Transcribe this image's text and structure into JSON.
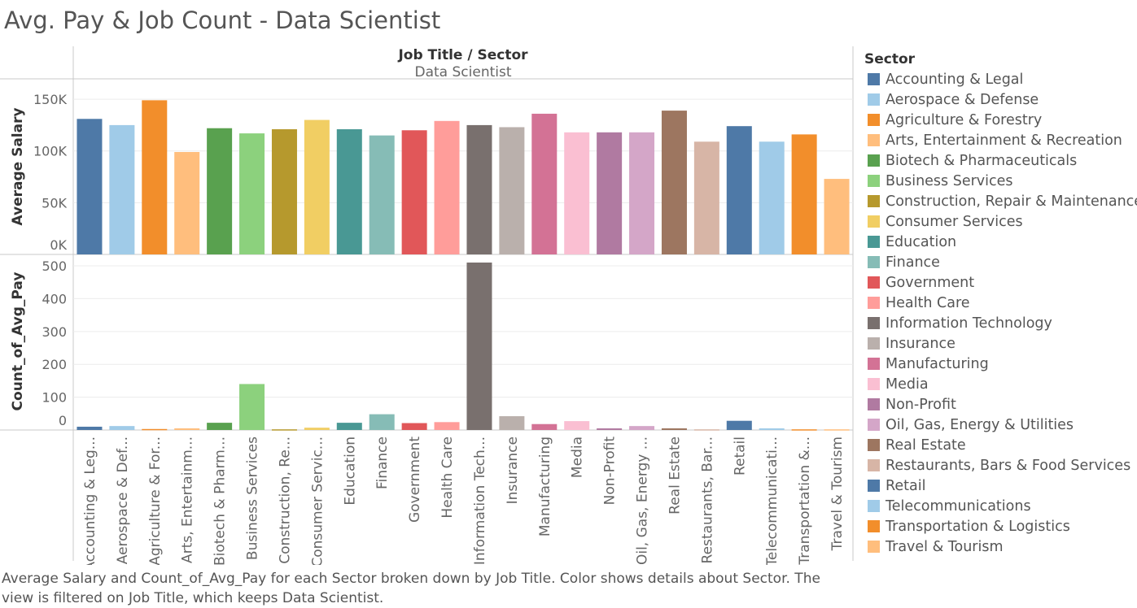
{
  "title": "Avg. Pay & Job Count - Data Scientist",
  "header": {
    "column_title": "Job Title  /  Sector",
    "job_title": "Data Scientist"
  },
  "caption": "Average Salary and Count_of_Avg_Pay for each Sector broken down by Job Title.  Color shows details about Sector. The view is filtered on Job Title, which keeps Data Scientist.",
  "legend": {
    "title": "Sector",
    "items": [
      {
        "label": "Accounting & Legal",
        "color": "#4e79a7"
      },
      {
        "label": "Aerospace & Defense",
        "color": "#a0cbe8"
      },
      {
        "label": "Agriculture & Forestry",
        "color": "#f28e2b"
      },
      {
        "label": "Arts, Entertainment & Recreation",
        "color": "#ffbe7d"
      },
      {
        "label": "Biotech & Pharmaceuticals",
        "color": "#59a14f"
      },
      {
        "label": "Business Services",
        "color": "#8cd17d"
      },
      {
        "label": "Construction, Repair & Maintenance",
        "color": "#b6992d"
      },
      {
        "label": "Consumer Services",
        "color": "#f1ce63"
      },
      {
        "label": "Education",
        "color": "#499894"
      },
      {
        "label": "Finance",
        "color": "#86bcb6"
      },
      {
        "label": "Government",
        "color": "#e15759"
      },
      {
        "label": "Health Care",
        "color": "#ff9d9a"
      },
      {
        "label": "Information Technology",
        "color": "#79706e"
      },
      {
        "label": "Insurance",
        "color": "#bab0ac"
      },
      {
        "label": "Manufacturing",
        "color": "#d37295"
      },
      {
        "label": "Media",
        "color": "#fabfd2"
      },
      {
        "label": "Non-Profit",
        "color": "#b07aa1"
      },
      {
        "label": "Oil, Gas, Energy & Utilities",
        "color": "#d4a6c8"
      },
      {
        "label": "Real Estate",
        "color": "#9d7660"
      },
      {
        "label": "Restaurants, Bars & Food Services",
        "color": "#d7b5a6"
      },
      {
        "label": "Retail",
        "color": "#4e79a7"
      },
      {
        "label": "Telecommunications",
        "color": "#a0cbe8"
      },
      {
        "label": "Transportation & Logistics",
        "color": "#f28e2b"
      },
      {
        "label": "Travel & Tourism",
        "color": "#ffbe7d"
      }
    ]
  },
  "chart_data": {
    "type": "bar",
    "categories": [
      "Accounting & Leg...",
      "Aerospace & Def...",
      "Agriculture & For...",
      "Arts, Entertainm...",
      "Biotech & Pharm...",
      "Business Services",
      "Construction, Re...",
      "Consumer Servic...",
      "Education",
      "Finance",
      "Government",
      "Health Care",
      "Information Tech...",
      "Insurance",
      "Manufacturing",
      "Media",
      "Non-Profit",
      "Oil, Gas, Energy ...",
      "Real Estate",
      "Restaurants, Bar...",
      "Retail",
      "Telecommunicati...",
      "Transportation &...",
      "Travel & Tourism"
    ],
    "series": [
      {
        "ylabel": "Average Salary",
        "ylim": [
          0,
          165000
        ],
        "yticks": [
          0,
          50000,
          100000,
          150000
        ],
        "ytick_labels": [
          "0K",
          "50K",
          "100K",
          "150K"
        ],
        "values": [
          131000,
          125000,
          149000,
          99000,
          122000,
          117000,
          121000,
          130000,
          121000,
          115000,
          120000,
          129000,
          125000,
          123000,
          136000,
          118000,
          118000,
          118000,
          139000,
          109000,
          124000,
          109000,
          116000,
          73000
        ]
      },
      {
        "ylabel": "Count_of_Avg_Pay",
        "ylim": [
          0,
          510
        ],
        "yticks": [
          0,
          100,
          200,
          300,
          400,
          500
        ],
        "ytick_labels": [
          "0",
          "100",
          "200",
          "300",
          "400",
          "500"
        ],
        "values": [
          10,
          12,
          3,
          5,
          22,
          140,
          2,
          7,
          22,
          48,
          21,
          24,
          510,
          42,
          18,
          27,
          5,
          12,
          5,
          2,
          28,
          5,
          2,
          2
        ]
      }
    ],
    "grid": true,
    "legend_position": "right"
  }
}
